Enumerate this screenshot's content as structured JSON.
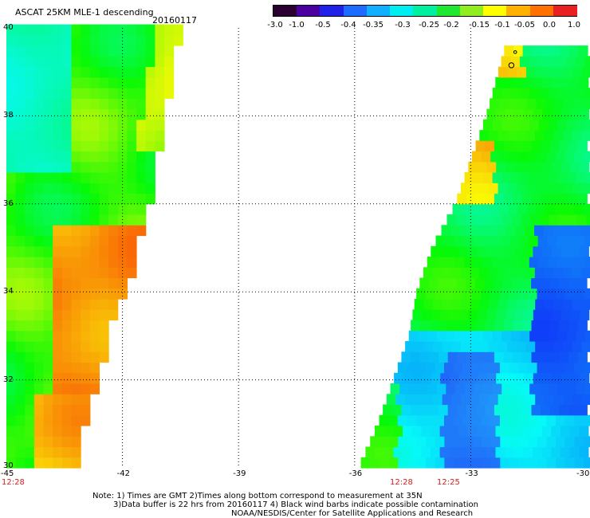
{
  "header": {
    "title": "ASCAT 25KM MLE-1 descending",
    "date": "20160117"
  },
  "colorbar": {
    "labels": [
      "-3.0",
      "-1.0",
      "-0.5",
      "-0.4",
      "-0.35",
      "-0.3",
      "-0.25",
      "-0.2",
      "-0.15",
      "-0.1",
      "-0.05",
      "0.0",
      "1.0"
    ],
    "colors": [
      "#2a0030",
      "#4a00a0",
      "#2020e8",
      "#1e6cff",
      "#10b0ff",
      "#00eef0",
      "#00f0a0",
      "#20e830",
      "#90ee20",
      "#ffff00",
      "#ffb000",
      "#ff7000",
      "#e82020"
    ]
  },
  "map": {
    "lon_min": -45,
    "lon_max": -30,
    "lat_min": 30,
    "lat_max": 40,
    "lon_ticks": [
      "-45",
      "-42",
      "-39",
      "-36",
      "-33",
      "-30"
    ],
    "lat_ticks": [
      "40",
      "38",
      "36",
      "34",
      "32",
      "30"
    ],
    "gridlines": true,
    "swaths": [
      {
        "name": "west-swath",
        "edge": [
          [
            40,
            -40.6
          ],
          [
            38.5,
            -40.9
          ],
          [
            37,
            -41.2
          ],
          [
            36,
            -41.4
          ],
          [
            35,
            -41.7
          ],
          [
            34,
            -42.0
          ],
          [
            33,
            -42.5
          ],
          [
            32,
            -42.7
          ],
          [
            31,
            -43.1
          ],
          [
            30,
            -43.1
          ]
        ]
      },
      {
        "name": "east-swath",
        "edge": [
          [
            39.6,
            -32.1
          ],
          [
            38,
            -32.6
          ],
          [
            37,
            -33.0
          ],
          [
            36,
            -33.4
          ],
          [
            35,
            -34.0
          ],
          [
            34,
            -34.4
          ],
          [
            33,
            -34.6
          ],
          [
            32,
            -35.0
          ],
          [
            31,
            -35.4
          ],
          [
            30,
            -35.9
          ]
        ]
      }
    ],
    "contamination_marks": [
      [
        39.45,
        -31.85
      ],
      [
        39.15,
        -31.95
      ]
    ]
  },
  "time_labels": [
    "12:28",
    "12:28",
    "12:25"
  ],
  "notes": {
    "line1": "Note: 1) Times are GMT 2)Times along bottom correspond to measurement at 35N",
    "line2": "3)Data buffer is 22 hrs from 20160117 4) Black wind barbs indicate possible contamination",
    "line3": "NOAA/NESDIS/Center for Satellite Applications and Research"
  }
}
